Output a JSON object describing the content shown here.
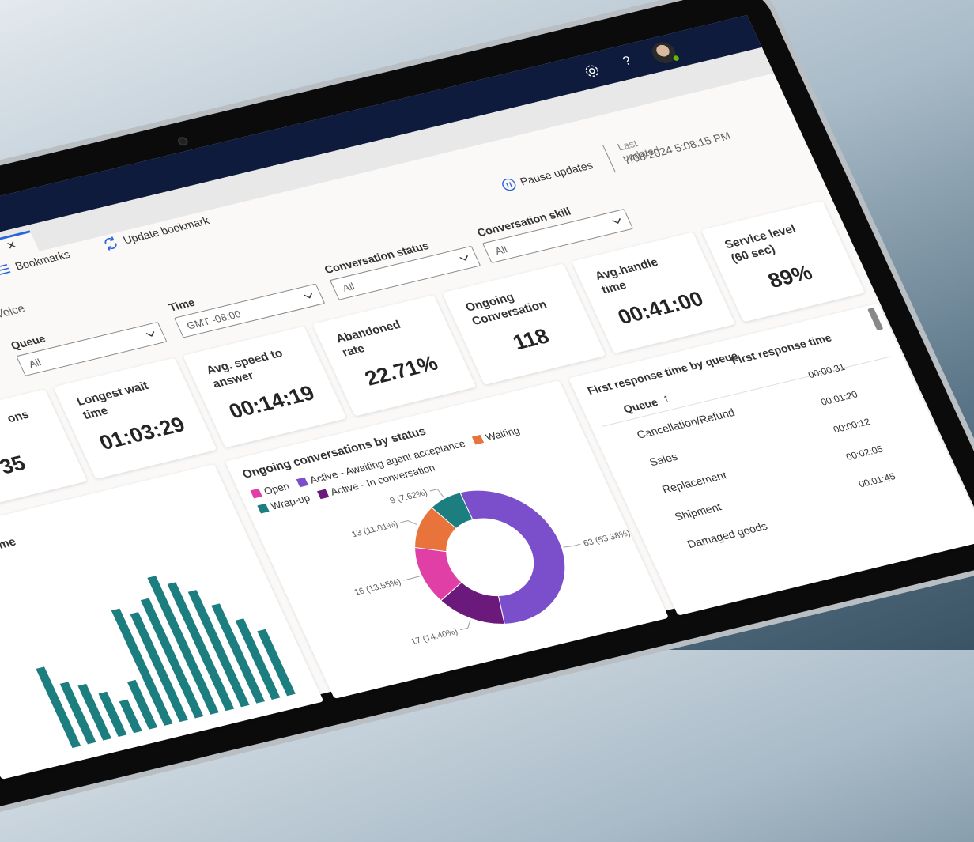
{
  "header": {
    "help": "?"
  },
  "toolbar": {
    "bookmarks": "Bookmarks",
    "update_bookmark": "Update bookmark"
  },
  "status": {
    "pause": "Pause updates",
    "last_updated_label": "Last updated",
    "last_updated": "7/08/2024 5:08:15 PM"
  },
  "filters": [
    {
      "value": "Voice"
    },
    {
      "label": "Queue",
      "value": "All"
    },
    {
      "label": "Time",
      "value": "GMT -08:00"
    },
    {
      "label": "Conversation status",
      "value": "All"
    },
    {
      "label": "Conversation skill",
      "value": "All"
    }
  ],
  "kpis": [
    {
      "label": "ons",
      "value": "35"
    },
    {
      "label": "Longest wait time",
      "value": "01:03:29"
    },
    {
      "label": "Avg. speed to answer",
      "value": "00:14:19"
    },
    {
      "label": "Abandoned rate",
      "value": "22.71%"
    },
    {
      "label": "Ongoing Conversation",
      "value": "118"
    },
    {
      "label": "Avg.handle time",
      "value": "00:41:00"
    },
    {
      "label": "Service level (60 sec)",
      "value": "89%"
    }
  ],
  "table": {
    "title": "First response time by queue",
    "columns": [
      "Queue",
      "First response time"
    ],
    "rows": [
      [
        "Cancellation/Refund",
        "00:00:31"
      ],
      [
        "Sales",
        "00:01:20"
      ],
      [
        "Replacement",
        "00:00:12"
      ],
      [
        "Shipment",
        "00:02:05"
      ],
      [
        "Damaged goods",
        "00:01:45"
      ]
    ]
  },
  "chart_data": [
    {
      "type": "donut",
      "title": "Ongoing conversations by status",
      "categories": [
        "Open",
        "Active - Awaiting agent acceptance",
        "Waiting",
        "Wrap-up",
        "Active - In conversation"
      ],
      "values": [
        16,
        63,
        13,
        9,
        17
      ],
      "value_labels": [
        "16 (13.55%)",
        "63 (53.38%)",
        "13 (11.01%)",
        "9 (7.62%)",
        "17 (14.40%)"
      ],
      "colors": [
        "#e03fa6",
        "#7b4fcb",
        "#e8743b",
        "#1d7e80",
        "#6b1a7c"
      ]
    },
    {
      "type": "bar",
      "title": "me",
      "color": "#1d7e80",
      "values": [
        55,
        42,
        38,
        30,
        22,
        33,
        80,
        75,
        82,
        95,
        88,
        80,
        68,
        55,
        45
      ]
    }
  ]
}
